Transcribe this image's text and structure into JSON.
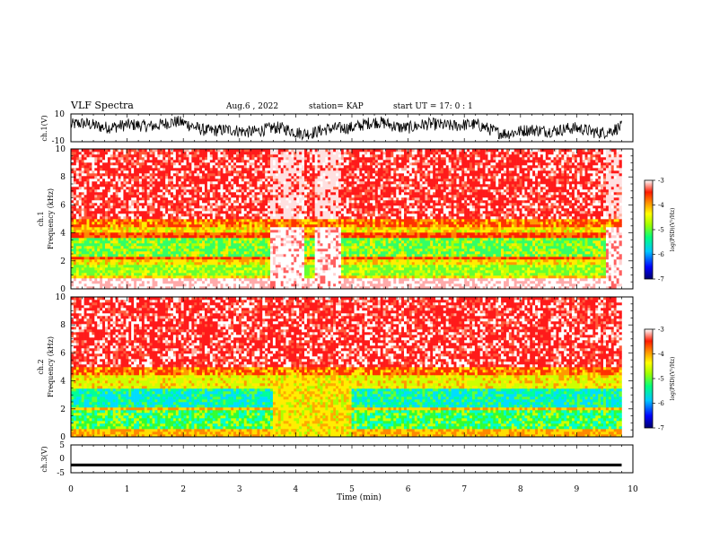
{
  "header": {
    "title": "VLF Spectra",
    "date": "Aug.6  , 2022",
    "station": "station= KAP",
    "start": "start  UT =   17: 0  : 1"
  },
  "chart_data": [
    {
      "type": "line",
      "name": "ch1-waveform",
      "ylabel": "ch.1(V)",
      "ylim": [
        -10,
        10
      ],
      "yticks": [
        "10",
        "-10"
      ],
      "xlim": [
        0,
        10
      ],
      "x_unit": "min",
      "color": "#000000"
    },
    {
      "type": "heatmap",
      "name": "ch1-spectrogram",
      "ylabel": "ch.1\nFrequency  (kHz)",
      "ylabel_top": "ch.1",
      "ylabel_main": "Frequency  (kHz)",
      "ylim": [
        0,
        10
      ],
      "yticks": [
        "0",
        "2",
        "4",
        "6",
        "8",
        "10"
      ],
      "xlim": [
        0,
        10
      ],
      "data_extent_min": 9.8,
      "colorbar": {
        "label": "log(PSD)(V²/Hz)",
        "range": [
          -7,
          -3
        ],
        "ticks": [
          "-3",
          "-4",
          "-5",
          "-6",
          "-7"
        ]
      },
      "notes": "red above ~5 kHz; green/yellow bands 1-5 kHz; white gaps at 3.6-4.8 min and 9.5-9.8 min"
    },
    {
      "type": "heatmap",
      "name": "ch2-spectrogram",
      "ylabel": "ch.2\nFrequency  (kHz)",
      "ylabel_top": "ch.2",
      "ylabel_main": "Frequency  (kHz)",
      "ylim": [
        0,
        10
      ],
      "yticks": [
        "0",
        "2",
        "4",
        "6",
        "8",
        "10"
      ],
      "xlim": [
        0,
        10
      ],
      "data_extent_min": 9.8,
      "colorbar": {
        "label": "log(PSD)(V²/Hz)",
        "range": [
          -7,
          -3
        ],
        "ticks": [
          "-3",
          "-4",
          "-5",
          "-6",
          "-7"
        ]
      },
      "notes": "red above ~5 kHz; cyan/green bands 0.5-3 kHz; yellow near 3.6-5 min"
    },
    {
      "type": "line",
      "name": "ch3-waveform",
      "ylabel": "ch.3(V)",
      "ylim": [
        -5,
        5
      ],
      "yticks": [
        "5",
        "0",
        "-5"
      ],
      "xlim": [
        0,
        10
      ],
      "xlabel": "Time  (min)",
      "xticks": [
        "0",
        "1",
        "2",
        "3",
        "4",
        "5",
        "6",
        "7",
        "8",
        "9",
        "10"
      ],
      "band_center": -2.2,
      "band_halfwidth": 0.5,
      "color": "#000000"
    }
  ]
}
